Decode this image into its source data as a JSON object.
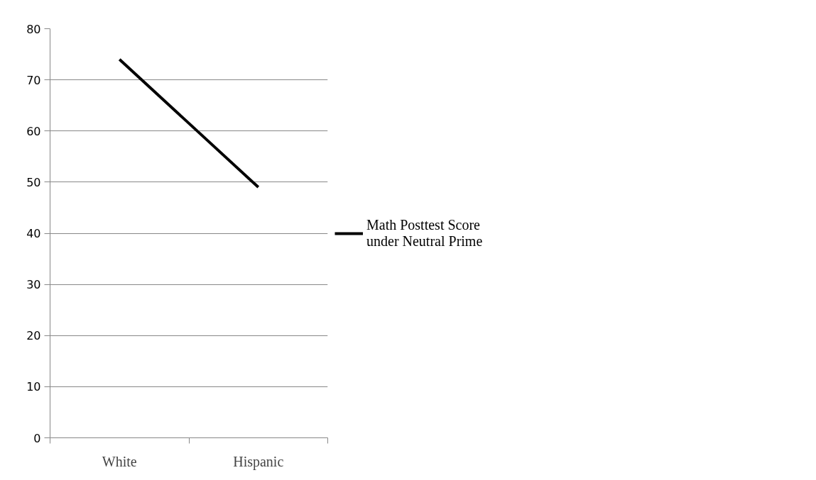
{
  "chart_data": {
    "type": "line",
    "categories": [
      "White",
      "Hispanic"
    ],
    "series": [
      {
        "name": "Math Posttest Score under Neutral Prime",
        "color": "#000000",
        "values": [
          74,
          49
        ]
      }
    ],
    "ylim": [
      0,
      80
    ],
    "yticks": [
      0,
      10,
      20,
      30,
      40,
      50,
      60,
      70,
      80
    ],
    "grid": "y",
    "legend": "right",
    "marker": "none",
    "line_style": "solid"
  }
}
